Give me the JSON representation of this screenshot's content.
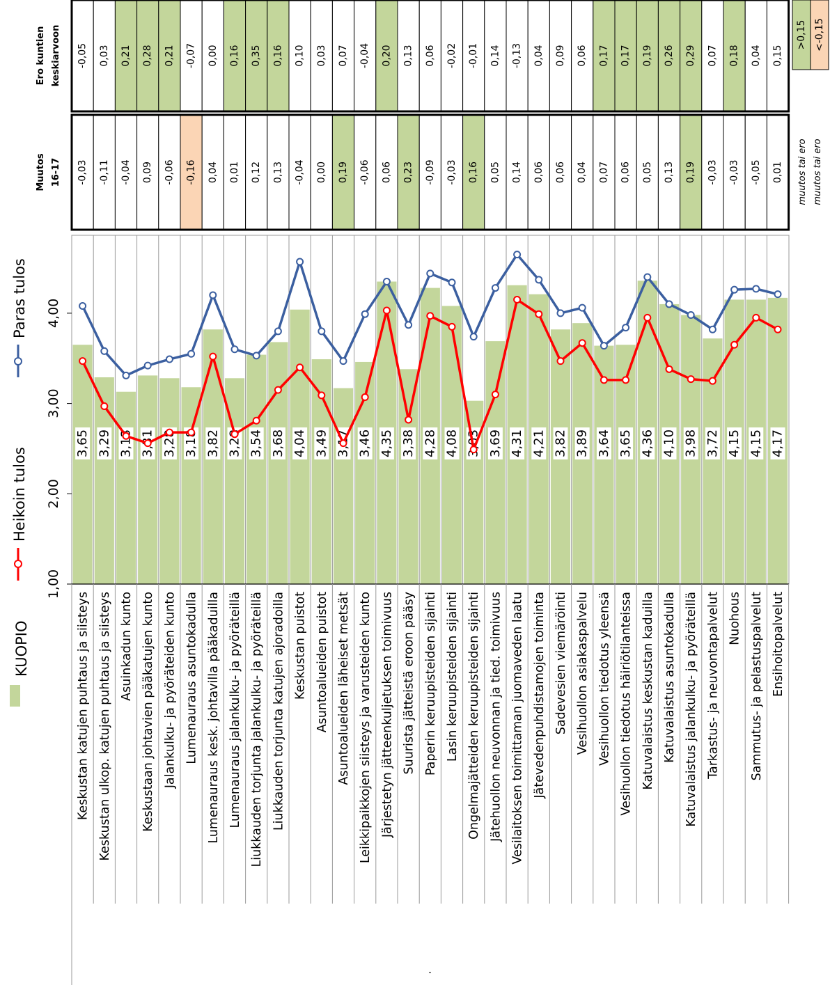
{
  "chart_data": {
    "type": "bar",
    "orientation": "rotated-90",
    "legend": {
      "placement": "left"
    },
    "legend_items": [
      {
        "label": "KUOPIO",
        "kind": "bar",
        "color": "#c3d69b"
      },
      {
        "label": "Heikoin tulos",
        "kind": "line",
        "color": "#ff0000"
      },
      {
        "label": "Paras tulos",
        "kind": "line",
        "color": "#3b5fa0"
      }
    ],
    "value_axis": {
      "min": 1.0,
      "max": 4.75,
      "ticks": [
        "1,00",
        "2,00",
        "3,00",
        "4,00"
      ]
    },
    "categories": [
      "Keskustan katujen puhtaus ja siisteys",
      "Keskustan ulkop. katujen puhtaus ja siisteys",
      "Asuinkadun kunto",
      "Keskustaan johtavien pääkatujen kunto",
      "Jalankulku- ja pyöräteiden kunto",
      "Lumenauraus asuntokadulla",
      "Lumenauraus kesk. johtavilla pääkaduilla",
      "Lumenauraus jalankulku- ja pyöräteillä",
      "Liukkauden torjunta jalankulku- ja pyöräteillä",
      "Liukkauden torjunta katujen ajoradoilla",
      "Keskustan puistot",
      "Asuntoalueiden puistot",
      "Asuntoalueiden läheiset metsät",
      "Leikkipaikkojen siisteys ja varusteiden kunto",
      "Järjestetyn jätteenkuljetuksen toimivuus",
      "Suurista jätteistä eroon pääsy",
      "Paperin keruupisteiden sijainti",
      "Lasin keruupisteiden sijainti",
      "Ongelmajätteiden keruupisteiden sijainti",
      "Jätehuollon neuvonnan ja tied. toimivuus",
      "Vesilaitoksen toimittaman juomaveden laatu",
      "Jätevedenpuhdistamojen toiminta",
      "Sadevesien viemäröinti",
      "Vesihuollon asiakaspalvelu",
      "Vesihuollon tiedotus yleensä",
      "Vesihuollon tiedotus häiriötilanteissa",
      "Katuvalaistus keskustan kaduilla",
      "Katuvalaistus asuntokadulla",
      "Katuvalaistus jalankulku- ja pyöräteillä",
      "Tarkastus- ja neuvontapalvelut",
      "Nuohous",
      "Sammutus- ja pelastuspalvelut",
      "Ensihoitopalvelut"
    ],
    "series": [
      {
        "name": "KUOPIO",
        "values": [
          3.65,
          3.29,
          3.13,
          3.31,
          3.28,
          3.18,
          3.82,
          3.28,
          3.54,
          3.68,
          4.04,
          3.49,
          3.17,
          3.46,
          4.35,
          3.38,
          4.28,
          4.08,
          3.03,
          3.69,
          4.31,
          4.21,
          3.82,
          3.89,
          3.64,
          3.65,
          4.36,
          4.1,
          3.98,
          3.72,
          4.15,
          4.15,
          4.17
        ],
        "labels": [
          "3,65",
          "3,29",
          "3,13",
          "3,31",
          "3,28",
          "3,18",
          "3,82",
          "3,28",
          "3,54",
          "3,68",
          "4,04",
          "3,49",
          "3,17",
          "3,46",
          "4,35",
          "3,38",
          "4,28",
          "4,08",
          "3,03",
          "3,69",
          "4,31",
          "4,21",
          "3,82",
          "3,89",
          "3,64",
          "3,65",
          "4,36",
          "4,10",
          "3,98",
          "3,72",
          "4,15",
          "4,15",
          "4,17"
        ]
      },
      {
        "name": "Heikoin tulos",
        "values": [
          3.47,
          2.97,
          2.64,
          2.56,
          2.68,
          2.68,
          3.52,
          2.66,
          2.81,
          3.15,
          3.4,
          3.09,
          2.56,
          3.07,
          4.03,
          2.82,
          3.97,
          3.85,
          2.49,
          3.1,
          4.15,
          3.99,
          3.47,
          3.67,
          3.26,
          3.26,
          3.95,
          3.38,
          3.27,
          3.25,
          3.65,
          3.95,
          3.82
        ]
      },
      {
        "name": "Paras tulos",
        "values": [
          4.08,
          3.58,
          3.31,
          3.42,
          3.49,
          3.55,
          4.2,
          3.6,
          3.53,
          3.8,
          4.57,
          3.8,
          3.47,
          3.99,
          4.35,
          3.87,
          4.44,
          4.34,
          3.74,
          4.28,
          4.65,
          4.37,
          4.0,
          4.06,
          3.64,
          3.84,
          4.4,
          4.1,
          3.98,
          3.82,
          4.26,
          4.27,
          4.21
        ]
      }
    ],
    "table": {
      "columns": [
        {
          "title_lines": [
            "Muutos",
            "16-17"
          ],
          "values": [
            "-0,03",
            "-0,11",
            "-0,04",
            "0,09",
            "-0,06",
            "-0,16",
            "0,04",
            "0,01",
            "0,12",
            "0,13",
            "-0,04",
            "0,00",
            "0,19",
            "-0,06",
            "0,06",
            "0,23",
            "-0,09",
            "-0,03",
            "0,16",
            "0,05",
            "0,14",
            "0,06",
            "0,06",
            "0,04",
            "0,07",
            "0,06",
            "0,05",
            "0,13",
            "0,19",
            "-0,03",
            "-0,03",
            "-0,05",
            "0,01"
          ]
        },
        {
          "title_lines": [
            "Ero kuntien",
            "keskiarvoon"
          ],
          "values": [
            "-0,05",
            "0,03",
            "0,21",
            "0,28",
            "0,21",
            "-0,07",
            "0,00",
            "0,16",
            "0,35",
            "0,16",
            "0,10",
            "0,03",
            "0,07",
            "-0,04",
            "0,20",
            "0,13",
            "0,06",
            "-0,02",
            "-0,01",
            "0,14",
            "-0,13",
            "0,04",
            "0,09",
            "0,06",
            "0,17",
            "0,17",
            "0,19",
            "0,26",
            "0,29",
            "0,07",
            "0,18",
            "0,04",
            "0,15"
          ]
        }
      ],
      "legend": [
        {
          "note": "muutos tai ero",
          "value": ">0,15",
          "color": "#c3d69b"
        },
        {
          "note": "muutos tai ero",
          "value": "<-0,15",
          "color": "#fbd5b5"
        }
      ]
    },
    "colors": {
      "bar": "#c3d69b",
      "low": "#ff0000",
      "high": "#3b5fa0",
      "neg_cell": "#fbd5b5"
    },
    "footnote": "."
  }
}
